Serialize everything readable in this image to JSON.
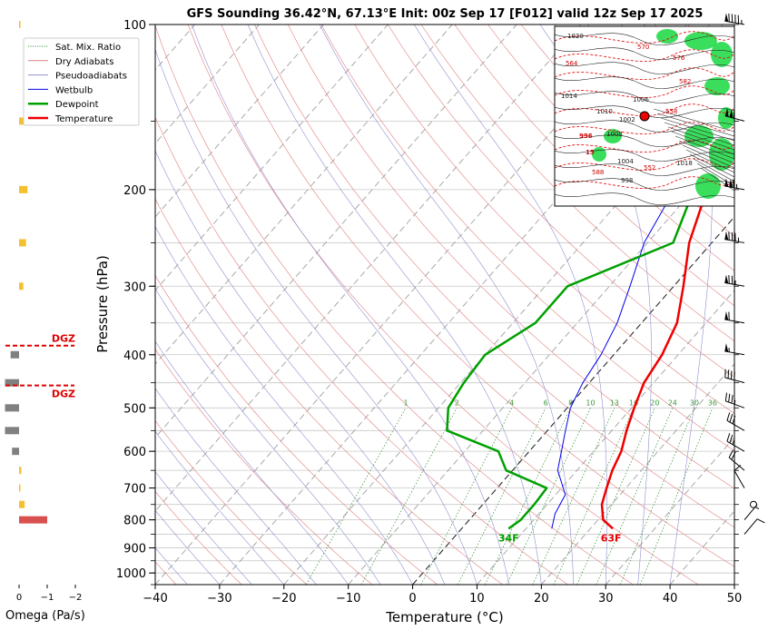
{
  "chart_data": {
    "type": "line",
    "title": "GFS Sounding 36.42°N, 67.13°E Init: 00z Sep 17 [F012] valid 12z Sep 17 2025",
    "xlabel": "Temperature (°C)",
    "ylabel": "Pressure (hPa)",
    "xlim": [
      -40,
      50
    ],
    "ylim": [
      1050,
      100
    ],
    "y_scale": "log",
    "skew": "skew-T",
    "x_ticks": [
      "−40",
      "−30",
      "−20",
      "−10",
      "0",
      "10",
      "20",
      "30",
      "40",
      "50"
    ],
    "x_tick_values": [
      -40,
      -30,
      -20,
      -10,
      0,
      10,
      20,
      30,
      40,
      50
    ],
    "y_ticks": [
      "100",
      "200",
      "300",
      "400",
      "500",
      "600",
      "700",
      "800",
      "900",
      "1000"
    ],
    "y_tick_values": [
      100,
      200,
      300,
      400,
      500,
      600,
      700,
      800,
      900,
      1000
    ],
    "grid": true,
    "legend": {
      "placement": "upper-left",
      "entries": [
        {
          "label": "Sat. Mix. Ratio",
          "color": "#2e8b2e",
          "style": "dotted"
        },
        {
          "label": "Dry Adiabats",
          "color": "#e08080",
          "style": "solid"
        },
        {
          "label": "Pseudoadiabats",
          "color": "#9090d0",
          "style": "solid"
        },
        {
          "label": "Wetbulb",
          "color": "#0000ee",
          "style": "solid"
        },
        {
          "label": "Dewpoint",
          "color": "#00a000",
          "style": "solid"
        },
        {
          "label": "Temperature",
          "color": "#ee0000",
          "style": "solid"
        }
      ]
    },
    "series": [
      {
        "name": "Temperature",
        "color": "#ee0000",
        "points": [
          [
            23.5,
            830
          ],
          [
            20.8,
            800
          ],
          [
            18.5,
            750
          ],
          [
            17.0,
            700
          ],
          [
            15.5,
            650
          ],
          [
            14.3,
            600
          ],
          [
            12.3,
            550
          ],
          [
            10.4,
            500
          ],
          [
            8.5,
            450
          ],
          [
            7.5,
            400
          ],
          [
            5.5,
            350
          ],
          [
            1.5,
            300
          ],
          [
            -3.5,
            250
          ],
          [
            -7.0,
            210
          ],
          [
            -11.0,
            170
          ],
          [
            -11.0,
            150
          ],
          [
            -9.0,
            125
          ],
          [
            -7.0,
            100
          ]
        ]
      },
      {
        "name": "Wetbulb",
        "color": "#0000ee",
        "points": [
          [
            14.0,
            830
          ],
          [
            12.5,
            780
          ],
          [
            11.5,
            720
          ],
          [
            9.0,
            680
          ],
          [
            7.0,
            650
          ],
          [
            5.0,
            600
          ],
          [
            2.8,
            550
          ],
          [
            0.5,
            500
          ],
          [
            -1.0,
            450
          ],
          [
            -2.0,
            400
          ],
          [
            -3.8,
            350
          ],
          [
            -6.8,
            300
          ],
          [
            -10.5,
            250
          ],
          [
            -12.5,
            210
          ],
          [
            -13.5,
            190
          ]
        ]
      },
      {
        "name": "Dewpoint",
        "color": "#00a000",
        "points": [
          [
            7.3,
            830
          ],
          [
            8.0,
            800
          ],
          [
            8.0,
            750
          ],
          [
            7.7,
            700
          ],
          [
            -1.0,
            650
          ],
          [
            -4.8,
            600
          ],
          [
            -15.6,
            550
          ],
          [
            -18.5,
            500
          ],
          [
            -19.5,
            450
          ],
          [
            -20.0,
            400
          ],
          [
            -16.5,
            350
          ],
          [
            -16.5,
            300
          ],
          [
            -6.0,
            250
          ],
          [
            -10.0,
            200
          ],
          [
            -12.0,
            150
          ],
          [
            -9.5,
            100
          ]
        ]
      }
    ],
    "surface_labels": {
      "dewpoint": "34F",
      "temperature": "63F"
    },
    "mixing_ratio_labels": [
      "1",
      "2",
      "4",
      "6",
      "8",
      "10",
      "13",
      "16",
      "20",
      "24",
      "30",
      "36"
    ],
    "mixing_ratio_values": [
      1,
      2,
      4,
      6,
      8,
      10,
      13,
      16,
      20,
      24,
      30,
      36
    ],
    "wind_barbs": [
      {
        "p": 100,
        "speed_kt": 95,
        "dir_deg": 280
      },
      {
        "p": 150,
        "speed_kt": 110,
        "dir_deg": 285
      },
      {
        "p": 200,
        "speed_kt": 115,
        "dir_deg": 280
      },
      {
        "p": 250,
        "speed_kt": 85,
        "dir_deg": 280
      },
      {
        "p": 300,
        "speed_kt": 75,
        "dir_deg": 280
      },
      {
        "p": 350,
        "speed_kt": 60,
        "dir_deg": 280
      },
      {
        "p": 400,
        "speed_kt": 55,
        "dir_deg": 280
      },
      {
        "p": 450,
        "speed_kt": 40,
        "dir_deg": 285
      },
      {
        "p": 500,
        "speed_kt": 35,
        "dir_deg": 290
      },
      {
        "p": 550,
        "speed_kt": 30,
        "dir_deg": 300
      },
      {
        "p": 600,
        "speed_kt": 25,
        "dir_deg": 300
      },
      {
        "p": 650,
        "speed_kt": 20,
        "dir_deg": 310
      },
      {
        "p": 700,
        "speed_kt": 10,
        "dir_deg": 330
      },
      {
        "p": 750,
        "speed_kt": 0,
        "dir_deg": 0
      },
      {
        "p": 800,
        "speed_kt": 5,
        "dir_deg": 40
      },
      {
        "p": 850,
        "speed_kt": 10,
        "dir_deg": 40
      }
    ],
    "omega_panel": {
      "xlabel": "Omega (Pa/s)",
      "ticks": [
        "0",
        "−1",
        "−2"
      ],
      "tick_values": [
        0,
        -1,
        -2
      ],
      "dgz_label": "DGZ",
      "dgz_bounds_hpa": [
        385,
        455
      ],
      "bars": [
        {
          "p": 100,
          "omega": -0.05,
          "color": "#f5c030"
        },
        {
          "p": 150,
          "omega": -0.35,
          "color": "#f5c030"
        },
        {
          "p": 200,
          "omega": -0.3,
          "color": "#f5c030"
        },
        {
          "p": 250,
          "omega": -0.25,
          "color": "#f5c030"
        },
        {
          "p": 300,
          "omega": -0.15,
          "color": "#f5c030"
        },
        {
          "p": 400,
          "omega": 0.3,
          "color": "#808080"
        },
        {
          "p": 450,
          "omega": 0.5,
          "color": "#808080"
        },
        {
          "p": 500,
          "omega": 0.5,
          "color": "#808080"
        },
        {
          "p": 550,
          "omega": 0.5,
          "color": "#808080"
        },
        {
          "p": 600,
          "omega": 0.25,
          "color": "#808080"
        },
        {
          "p": 650,
          "omega": -0.08,
          "color": "#f5c030"
        },
        {
          "p": 700,
          "omega": -0.05,
          "color": "#f5c030"
        },
        {
          "p": 750,
          "omega": -0.2,
          "color": "#f5c030"
        },
        {
          "p": 800,
          "omega": -1.0,
          "color": "#d95050"
        }
      ]
    },
    "inset_map": {
      "contour_labels": [
        "1020",
        "564",
        "1014",
        "1010",
        "1008",
        "1006",
        "1002",
        "996",
        "15",
        "588",
        "1004",
        "558",
        "552",
        "998",
        "1018",
        "570",
        "576",
        "582"
      ]
    }
  }
}
